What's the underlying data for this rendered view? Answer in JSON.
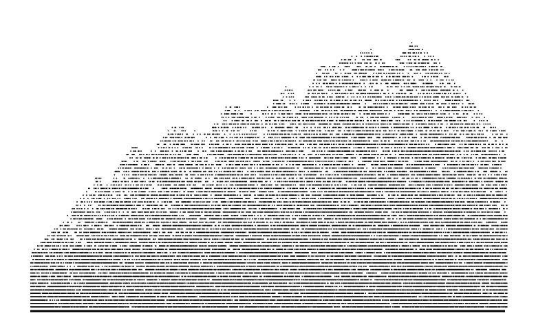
{
  "chart_data": {
    "type": "scatter",
    "title": "",
    "xlabel": "",
    "ylabel": "",
    "grid": false,
    "legend": "none",
    "xlim": [
      0,
      1400
    ],
    "ylim": [
      0,
      86
    ],
    "baseline": 0,
    "marker_color": "#000000",
    "series": [
      {
        "envelope": {
          "x": [
            0,
            100,
            150,
            200,
            215,
            300,
            340,
            420,
            520,
            580,
            680,
            760,
            790,
            850,
            1000,
            1050,
            1120,
            1200,
            1350,
            1400
          ],
          "y": [
            17,
            27,
            34,
            41,
            36,
            49,
            46,
            55,
            52,
            61,
            59,
            67,
            60,
            72,
            77,
            72,
            79,
            74,
            55,
            53
          ]
        }
      }
    ]
  },
  "page": {
    "background_color": "#ffffff",
    "baseline_color": "#000000"
  }
}
